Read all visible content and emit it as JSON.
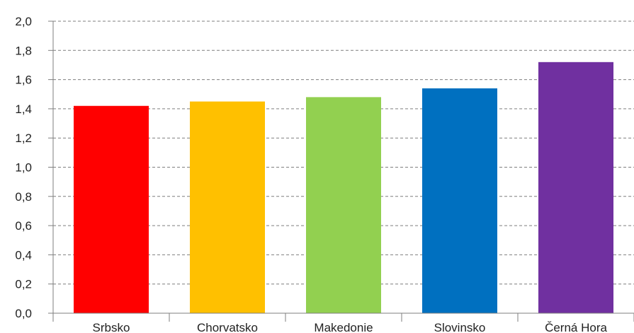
{
  "chart_data": {
    "type": "bar",
    "categories": [
      "Srbsko",
      "Chorvatsko",
      "Makedonie",
      "Slovinsko",
      "Černá Hora"
    ],
    "values": [
      1.42,
      1.45,
      1.48,
      1.54,
      1.72
    ],
    "colors": [
      "#ff0000",
      "#ffc000",
      "#92d050",
      "#0070c0",
      "#7030a0"
    ],
    "ylim": [
      0,
      2.0
    ],
    "yticks": [
      "0,0",
      "0,2",
      "0,4",
      "0,6",
      "0,8",
      "1,0",
      "1,2",
      "1,4",
      "1,6",
      "1,8",
      "2,0"
    ],
    "grid": true,
    "title": "",
    "xlabel": "",
    "ylabel": ""
  }
}
